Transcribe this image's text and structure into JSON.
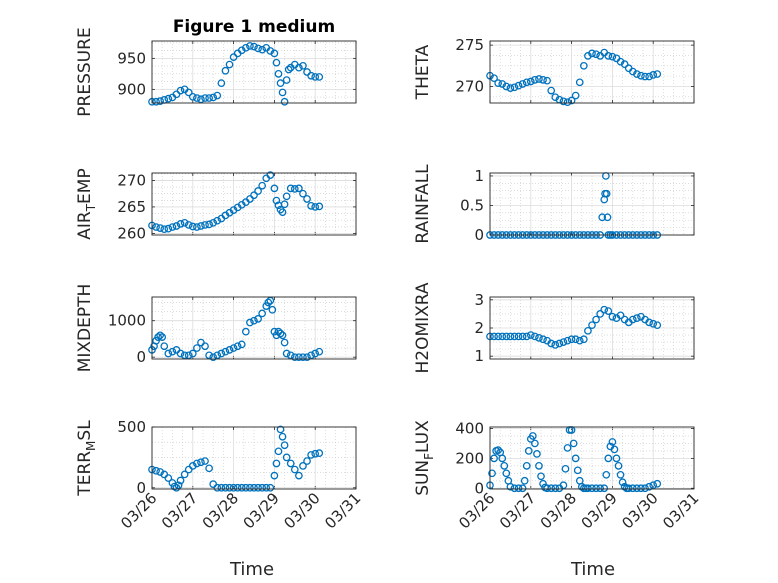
{
  "chart_data": [
    {
      "type": "scatter",
      "title": "Figure 1 medium",
      "ylabel": "PRESSURE",
      "xlim": [
        "03/26",
        "03/31"
      ],
      "ylim": [
        878,
        978
      ],
      "yticks": [
        900,
        950
      ],
      "grid": true,
      "marker_color": "#0072BD",
      "x": [
        26.0,
        26.1,
        26.2,
        26.3,
        26.4,
        26.5,
        26.6,
        26.7,
        26.8,
        26.9,
        27.0,
        27.1,
        27.2,
        27.3,
        27.4,
        27.5,
        27.6,
        27.7,
        27.8,
        27.9,
        28.0,
        28.1,
        28.2,
        28.3,
        28.4,
        28.5,
        28.6,
        28.7,
        28.8,
        28.9,
        29.0,
        29.05,
        29.1,
        29.15,
        29.2,
        29.25,
        29.3,
        29.35,
        29.4,
        29.5,
        29.6,
        29.7,
        29.8,
        29.9,
        30.0,
        30.1
      ],
      "y": [
        880,
        880,
        881,
        883,
        885,
        887,
        892,
        898,
        900,
        895,
        888,
        886,
        884,
        886,
        886,
        887,
        890,
        910,
        930,
        940,
        952,
        958,
        963,
        967,
        970,
        969,
        966,
        964,
        967,
        962,
        958,
        943,
        925,
        910,
        895,
        880,
        915,
        932,
        935,
        940,
        935,
        938,
        928,
        922,
        920,
        920
      ]
    },
    {
      "type": "scatter",
      "title": "",
      "ylabel": "THETA",
      "xlim": [
        "03/26",
        "03/31"
      ],
      "ylim": [
        268,
        275.5
      ],
      "yticks": [
        270,
        275
      ],
      "grid": true,
      "marker_color": "#0072BD",
      "x": [
        26.0,
        26.1,
        26.2,
        26.3,
        26.4,
        26.5,
        26.6,
        26.7,
        26.8,
        26.9,
        27.0,
        27.1,
        27.2,
        27.3,
        27.4,
        27.5,
        27.6,
        27.7,
        27.8,
        27.9,
        28.0,
        28.1,
        28.2,
        28.3,
        28.4,
        28.5,
        28.6,
        28.7,
        28.8,
        28.9,
        29.0,
        29.1,
        29.2,
        29.3,
        29.4,
        29.5,
        29.6,
        29.7,
        29.8,
        29.9,
        30.0,
        30.1
      ],
      "y": [
        271.3,
        271,
        270.4,
        270.3,
        270,
        269.8,
        269.9,
        270.1,
        270.3,
        270.5,
        270.6,
        270.8,
        270.9,
        270.8,
        270.7,
        269.5,
        268.7,
        268.4,
        268.2,
        268.1,
        268.3,
        268.9,
        270.5,
        272.5,
        273.7,
        274,
        273.9,
        273.7,
        274.1,
        273.7,
        273.6,
        273.4,
        273,
        272.7,
        272.2,
        271.8,
        271.5,
        271.3,
        271.2,
        271.2,
        271.4,
        271.5
      ]
    },
    {
      "type": "scatter",
      "title": "",
      "ylabel": "AIR_TEMP",
      "xlim": [
        "03/26",
        "03/31"
      ],
      "ylim": [
        259.7,
        271.4
      ],
      "yticks": [
        260,
        265,
        270
      ],
      "grid": true,
      "marker_color": "#0072BD",
      "x": [
        26.0,
        26.1,
        26.2,
        26.3,
        26.4,
        26.5,
        26.6,
        26.7,
        26.8,
        26.9,
        27.0,
        27.1,
        27.2,
        27.3,
        27.4,
        27.5,
        27.6,
        27.7,
        27.8,
        27.9,
        28.0,
        28.1,
        28.2,
        28.3,
        28.4,
        28.5,
        28.6,
        28.7,
        28.8,
        28.9,
        29.0,
        29.05,
        29.1,
        29.15,
        29.2,
        29.25,
        29.3,
        29.4,
        29.5,
        29.6,
        29.7,
        29.8,
        29.9,
        30.0,
        30.1
      ],
      "y": [
        261.5,
        261.2,
        261,
        260.8,
        260.9,
        261.2,
        261.4,
        261.8,
        262,
        261.6,
        261.3,
        261.2,
        261.4,
        261.6,
        261.7,
        262,
        262.4,
        262.8,
        263.4,
        263.9,
        264.4,
        264.9,
        265.4,
        265.9,
        266.5,
        267.2,
        268,
        269,
        270.4,
        271,
        268.5,
        266.2,
        265.3,
        264.5,
        264,
        265.5,
        267,
        268.5,
        268.4,
        268.5,
        267.5,
        266.5,
        265.2,
        265,
        265.1
      ]
    },
    {
      "type": "scatter",
      "title": "",
      "ylabel": "RAINFALL",
      "xlim": [
        "03/26",
        "03/31"
      ],
      "ylim": [
        0,
        1.05
      ],
      "yticks": [
        0,
        0.5,
        1
      ],
      "grid": true,
      "marker_color": "#0072BD",
      "x": [
        26.0,
        26.1,
        26.2,
        26.3,
        26.4,
        26.5,
        26.6,
        26.7,
        26.8,
        26.9,
        27.0,
        27.1,
        27.2,
        27.3,
        27.4,
        27.5,
        27.6,
        27.7,
        27.8,
        27.9,
        28.0,
        28.1,
        28.2,
        28.3,
        28.4,
        28.5,
        28.6,
        28.7,
        28.75,
        28.8,
        28.82,
        28.84,
        28.86,
        28.88,
        28.9,
        28.95,
        29.0,
        29.1,
        29.2,
        29.3,
        29.4,
        29.5,
        29.6,
        29.7,
        29.8,
        29.9,
        30.0,
        30.1
      ],
      "y": [
        0,
        0,
        0,
        0,
        0,
        0,
        0,
        0,
        0,
        0,
        0,
        0,
        0,
        0,
        0,
        0,
        0,
        0,
        0,
        0,
        0,
        0,
        0,
        0,
        0,
        0,
        0,
        0,
        0.3,
        0.6,
        0.7,
        1.0,
        0.7,
        0.3,
        0,
        0,
        0,
        0,
        0,
        0,
        0,
        0,
        0,
        0,
        0,
        0,
        0,
        0
      ]
    },
    {
      "type": "scatter",
      "title": "",
      "ylabel": "MIXDEPTH",
      "xlim": [
        "03/26",
        "03/31"
      ],
      "ylim": [
        -50,
        1650
      ],
      "yticks": [
        0,
        1000
      ],
      "grid": true,
      "marker_color": "#0072BD",
      "x": [
        26.0,
        26.05,
        26.1,
        26.15,
        26.2,
        26.25,
        26.3,
        26.4,
        26.5,
        26.6,
        26.7,
        26.8,
        26.9,
        27.0,
        27.1,
        27.2,
        27.3,
        27.4,
        27.5,
        27.6,
        27.7,
        27.8,
        27.9,
        28.0,
        28.1,
        28.2,
        28.3,
        28.4,
        28.5,
        28.6,
        28.7,
        28.8,
        28.85,
        28.9,
        28.95,
        29.0,
        29.05,
        29.1,
        29.15,
        29.2,
        29.25,
        29.3,
        29.4,
        29.5,
        29.6,
        29.7,
        29.8,
        29.9,
        30.0,
        30.1
      ],
      "y": [
        200,
        300,
        450,
        550,
        600,
        550,
        300,
        100,
        150,
        200,
        100,
        50,
        50,
        100,
        250,
        400,
        300,
        50,
        0,
        50,
        100,
        150,
        200,
        250,
        300,
        350,
        700,
        950,
        1000,
        1050,
        1200,
        1400,
        1500,
        1550,
        1300,
        700,
        600,
        700,
        650,
        600,
        400,
        100,
        50,
        0,
        0,
        0,
        0,
        50,
        100,
        150
      ]
    },
    {
      "type": "scatter",
      "title": "",
      "ylabel": "H2OMIXRA",
      "xlim": [
        "03/26",
        "03/31"
      ],
      "ylim": [
        0.9,
        3.1
      ],
      "yticks": [
        1,
        2,
        3
      ],
      "grid": true,
      "marker_color": "#0072BD",
      "x": [
        26.0,
        26.1,
        26.2,
        26.3,
        26.4,
        26.5,
        26.6,
        26.7,
        26.8,
        26.9,
        27.0,
        27.1,
        27.2,
        27.3,
        27.4,
        27.5,
        27.6,
        27.7,
        27.8,
        27.9,
        28.0,
        28.1,
        28.2,
        28.3,
        28.4,
        28.5,
        28.6,
        28.7,
        28.8,
        28.9,
        29.0,
        29.1,
        29.2,
        29.3,
        29.4,
        29.5,
        29.6,
        29.7,
        29.8,
        29.9,
        30.0,
        30.1
      ],
      "y": [
        1.7,
        1.7,
        1.7,
        1.7,
        1.7,
        1.7,
        1.7,
        1.7,
        1.7,
        1.7,
        1.75,
        1.7,
        1.65,
        1.6,
        1.55,
        1.45,
        1.4,
        1.45,
        1.5,
        1.55,
        1.6,
        1.6,
        1.55,
        1.6,
        1.9,
        2.1,
        2.3,
        2.5,
        2.65,
        2.6,
        2.4,
        2.35,
        2.45,
        2.3,
        2.2,
        2.3,
        2.35,
        2.4,
        2.3,
        2.2,
        2.15,
        2.1
      ]
    },
    {
      "type": "scatter",
      "title": "",
      "ylabel": "TERR_MSL",
      "xlim": [
        "03/26",
        "03/31"
      ],
      "ylim": [
        -10,
        500
      ],
      "yticks": [
        0,
        500
      ],
      "grid": true,
      "marker_color": "#0072BD",
      "x": [
        26.0,
        26.1,
        26.2,
        26.3,
        26.4,
        26.5,
        26.55,
        26.6,
        26.65,
        26.7,
        26.8,
        26.9,
        27.0,
        27.1,
        27.2,
        27.3,
        27.4,
        27.5,
        27.6,
        27.7,
        27.8,
        27.9,
        28.0,
        28.1,
        28.2,
        28.3,
        28.4,
        28.5,
        28.6,
        28.7,
        28.8,
        28.9,
        29.0,
        29.05,
        29.1,
        29.15,
        29.2,
        29.25,
        29.3,
        29.4,
        29.5,
        29.6,
        29.7,
        29.8,
        29.9,
        30.0,
        30.1
      ],
      "y": [
        150,
        140,
        130,
        110,
        80,
        40,
        10,
        0,
        20,
        60,
        110,
        150,
        180,
        200,
        210,
        220,
        160,
        30,
        0,
        0,
        0,
        0,
        0,
        0,
        0,
        0,
        0,
        0,
        0,
        0,
        0,
        0,
        100,
        200,
        300,
        480,
        420,
        350,
        250,
        200,
        150,
        100,
        180,
        220,
        270,
        280,
        285
      ]
    },
    {
      "type": "scatter",
      "title": "",
      "ylabel": "SUN_FLUX",
      "xlim": [
        "03/26",
        "03/31"
      ],
      "ylim": [
        -5,
        410
      ],
      "yticks": [
        0,
        200,
        400
      ],
      "grid": true,
      "marker_color": "#0072BD",
      "x": [
        26.0,
        26.05,
        26.1,
        26.15,
        26.2,
        26.25,
        26.3,
        26.35,
        26.4,
        26.45,
        26.5,
        26.6,
        26.7,
        26.8,
        26.85,
        26.9,
        26.95,
        27.0,
        27.05,
        27.1,
        27.15,
        27.2,
        27.25,
        27.3,
        27.35,
        27.4,
        27.5,
        27.6,
        27.7,
        27.8,
        27.85,
        27.9,
        27.95,
        28.0,
        28.05,
        28.1,
        28.15,
        28.2,
        28.25,
        28.3,
        28.35,
        28.4,
        28.5,
        28.6,
        28.7,
        28.8,
        28.85,
        28.9,
        28.95,
        29.0,
        29.05,
        29.1,
        29.15,
        29.2,
        29.25,
        29.3,
        29.35,
        29.4,
        29.5,
        29.6,
        29.7,
        29.8,
        29.9,
        30.0,
        30.1
      ],
      "y": [
        20,
        100,
        200,
        250,
        255,
        240,
        200,
        150,
        100,
        50,
        10,
        0,
        0,
        0,
        50,
        150,
        250,
        330,
        350,
        300,
        230,
        150,
        80,
        30,
        5,
        0,
        0,
        0,
        0,
        20,
        130,
        270,
        390,
        390,
        300,
        200,
        120,
        50,
        10,
        0,
        0,
        0,
        0,
        0,
        0,
        0,
        90,
        200,
        280,
        310,
        260,
        200,
        150,
        90,
        40,
        10,
        0,
        0,
        0,
        0,
        0,
        0,
        10,
        20,
        30
      ]
    }
  ],
  "xtick_labels": [
    "03/26",
    "03/27",
    "03/28",
    "03/29",
    "03/30",
    "03/31"
  ],
  "xlabel": "Time"
}
